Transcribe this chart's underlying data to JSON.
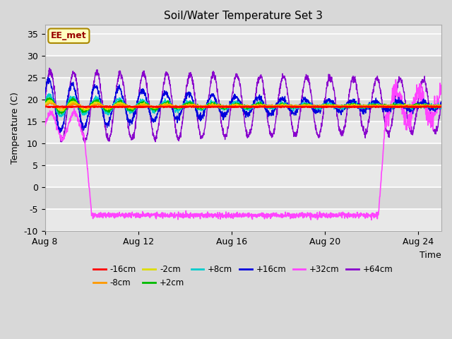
{
  "title": "Soil/Water Temperature Set 3",
  "xlabel": "Time",
  "ylabel": "Temperature (C)",
  "xlim": [
    0,
    17
  ],
  "ylim": [
    -10,
    37
  ],
  "yticks": [
    -10,
    -5,
    0,
    5,
    10,
    15,
    20,
    25,
    30,
    35
  ],
  "xtick_labels": [
    "Aug 8",
    "Aug 12",
    "Aug 16",
    "Aug 20",
    "Aug 24"
  ],
  "xtick_positions": [
    0,
    4,
    8,
    12,
    16
  ],
  "figsize": [
    6.4,
    4.8
  ],
  "dpi": 100,
  "bg_color": "#d8d8d8",
  "plot_bg_light": "#e8e8e8",
  "plot_bg_dark": "#d8d8d8",
  "annotation_text": "EE_met",
  "annotation_fg": "#990000",
  "annotation_bg": "#ffffc0",
  "annotation_edge": "#aa8800",
  "colors": {
    "-16cm": "#ff0000",
    "-8cm": "#ff9900",
    "-2cm": "#dddd00",
    "+2cm": "#00bb00",
    "+8cm": "#00cccc",
    "+16cm": "#0000dd",
    "+32cm": "#ff44ff",
    "+64cm": "#8800cc"
  },
  "legend_order": [
    "-16cm",
    "-8cm",
    "-2cm",
    "+2cm",
    "+8cm",
    "+16cm",
    "+32cm",
    "+64cm"
  ],
  "base_temp": 18.5,
  "p32_drop_day": 2.0,
  "p32_flat_val": -6.5,
  "p32_rise_day": 14.3,
  "p32_rise_end": 14.6
}
